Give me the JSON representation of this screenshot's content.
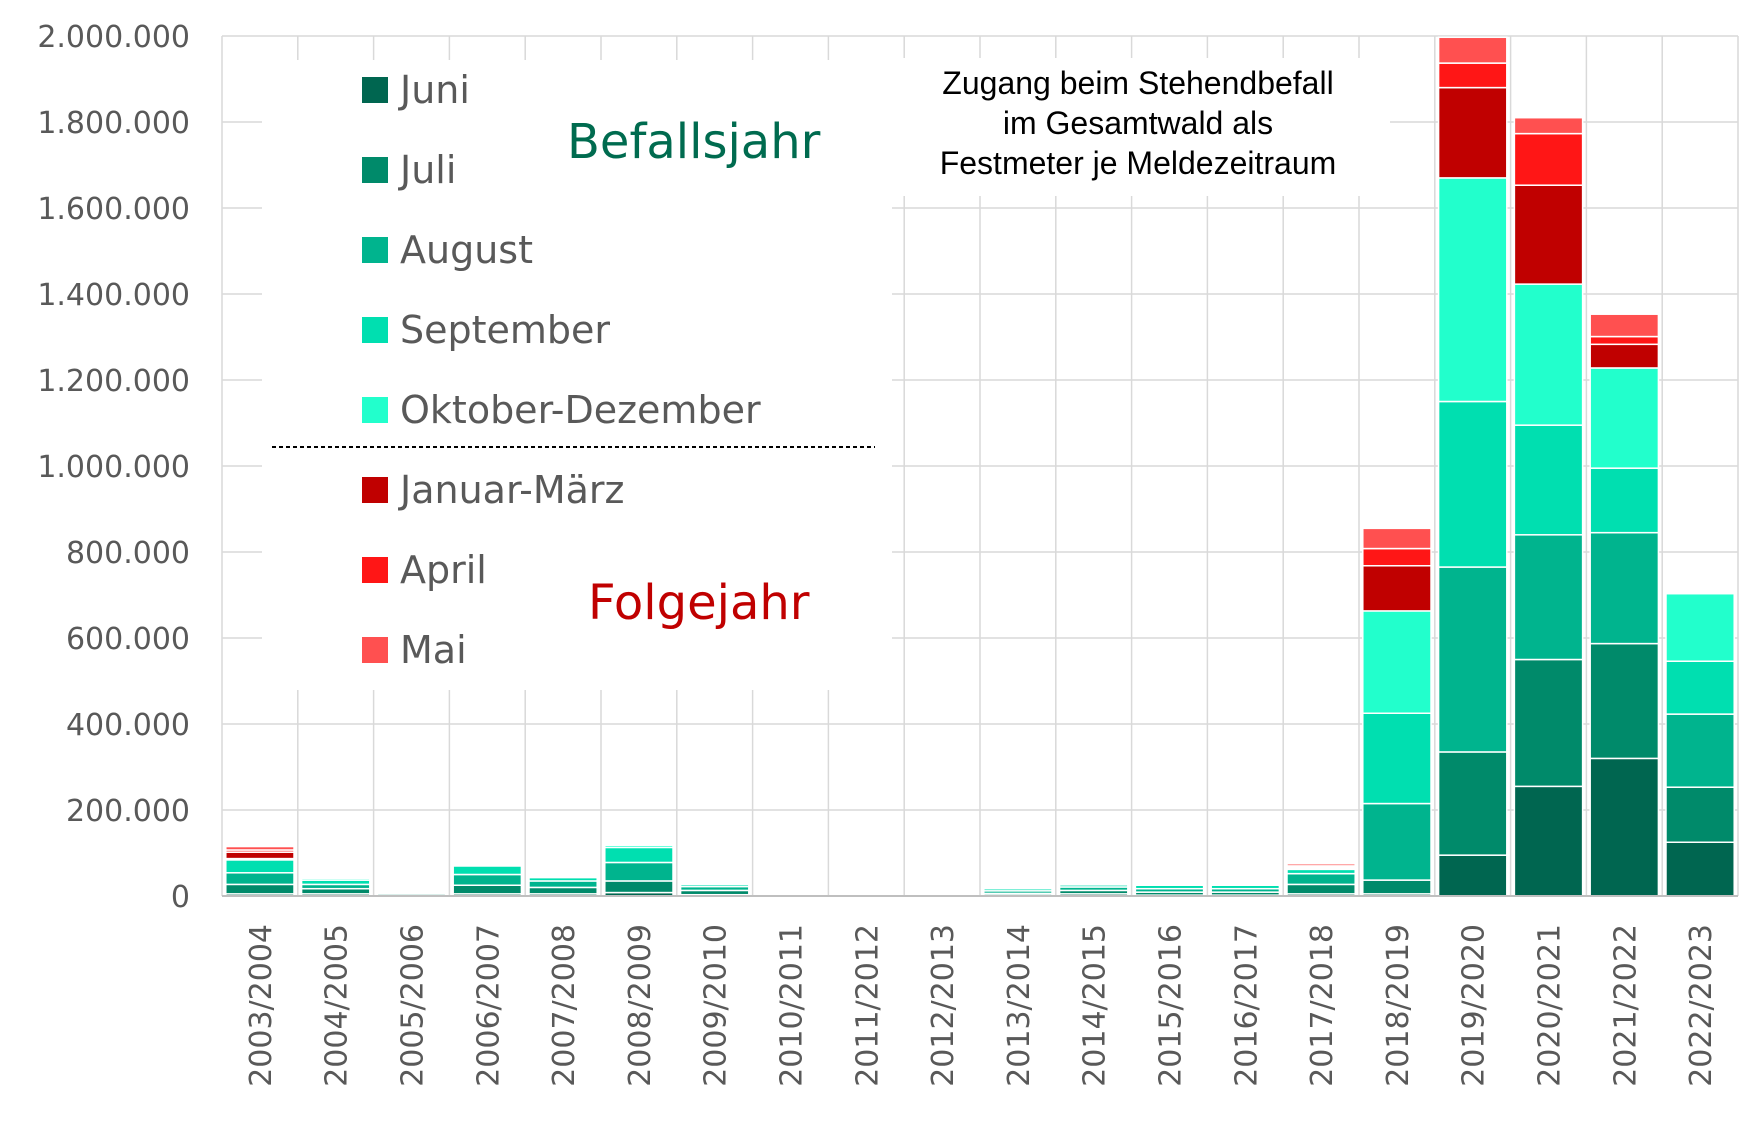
{
  "chart_data": {
    "type": "bar",
    "stacked": true,
    "title": "",
    "annotation": [
      "Zugang beim Stehendbefall",
      "im Gesamtwald als",
      "Festmeter je Meldezeitraum"
    ],
    "xlabel": "",
    "ylabel": "",
    "ylim": [
      0,
      2000000
    ],
    "yticks": [
      0,
      200000,
      400000,
      600000,
      800000,
      1000000,
      1200000,
      1400000,
      1600000,
      1800000,
      2000000
    ],
    "ytick_labels": [
      "0",
      "200.000",
      "400.000",
      "600.000",
      "800.000",
      "1.000.000",
      "1.200.000",
      "1.400.000",
      "1.600.000",
      "1.800.000",
      "2.000.000"
    ],
    "grid": true,
    "legend_position": "top-left",
    "legend_groups": [
      {
        "label": "Befallsjahr",
        "color": "#006B4F",
        "series": [
          "Juni",
          "Juli",
          "August",
          "September",
          "Oktober-Dezember"
        ]
      },
      {
        "label": "Folgejahr",
        "color": "#C00000",
        "series": [
          "Januar-März",
          "April",
          "Mai"
        ]
      }
    ],
    "categories": [
      "2003/2004",
      "2004/2005",
      "2005/2006",
      "2006/2007",
      "2007/2008",
      "2008/2009",
      "2009/2010",
      "2010/2011",
      "2011/2012",
      "2012/2013",
      "2013/2014",
      "2014/2015",
      "2015/2016",
      "2016/2017",
      "2017/2018",
      "2018/2019",
      "2019/2020",
      "2020/2021",
      "2021/2022",
      "2022/2023"
    ],
    "series": [
      {
        "name": "Juni",
        "color": "#006650",
        "values": [
          5000,
          5000,
          2000,
          5000,
          5000,
          8000,
          3000,
          0,
          0,
          0,
          2000,
          5000,
          2000,
          2000,
          5000,
          5000,
          95000,
          255000,
          320000,
          125000
        ]
      },
      {
        "name": "Juli",
        "color": "#008A6A",
        "values": [
          22000,
          12000,
          4000,
          20000,
          15000,
          27000,
          10000,
          0,
          0,
          0,
          4000,
          8000,
          7000,
          7000,
          22000,
          32000,
          240000,
          295000,
          267000,
          128000
        ]
      },
      {
        "name": "August",
        "color": "#00B48E",
        "values": [
          27000,
          10000,
          3000,
          25000,
          15000,
          43000,
          9000,
          0,
          0,
          0,
          6000,
          8000,
          8000,
          8000,
          25000,
          178000,
          430000,
          290000,
          258000,
          170000
        ]
      },
      {
        "name": "September",
        "color": "#00DFB0",
        "values": [
          30000,
          10000,
          3000,
          20000,
          8000,
          35000,
          5000,
          0,
          0,
          0,
          5000,
          5000,
          8000,
          8000,
          10000,
          210000,
          385000,
          255000,
          150000,
          123000
        ]
      },
      {
        "name": "Oktober-Dezember",
        "color": "#22FFCC",
        "values": [
          3000,
          4000,
          2000,
          2000,
          2000,
          5000,
          2000,
          0,
          0,
          0,
          2000,
          2000,
          2000,
          2000,
          3000,
          238000,
          520000,
          328000,
          233000,
          157000
        ]
      },
      {
        "name": "Januar-März",
        "color": "#C00000",
        "values": [
          15000,
          0,
          0,
          0,
          0,
          0,
          0,
          0,
          0,
          0,
          0,
          0,
          0,
          0,
          2000,
          105000,
          210000,
          230000,
          55000,
          0
        ]
      },
      {
        "name": "April",
        "color": "#FF1616",
        "values": [
          5000,
          0,
          0,
          0,
          0,
          0,
          0,
          0,
          0,
          0,
          0,
          0,
          2000,
          0,
          3000,
          40000,
          57000,
          120000,
          18000,
          0
        ]
      },
      {
        "name": "Mai",
        "color": "#FF5050",
        "values": [
          8000,
          0,
          0,
          0,
          0,
          0,
          0,
          0,
          0,
          0,
          0,
          0,
          2000,
          0,
          5000,
          47000,
          60000,
          37000,
          52000,
          0
        ]
      }
    ]
  }
}
